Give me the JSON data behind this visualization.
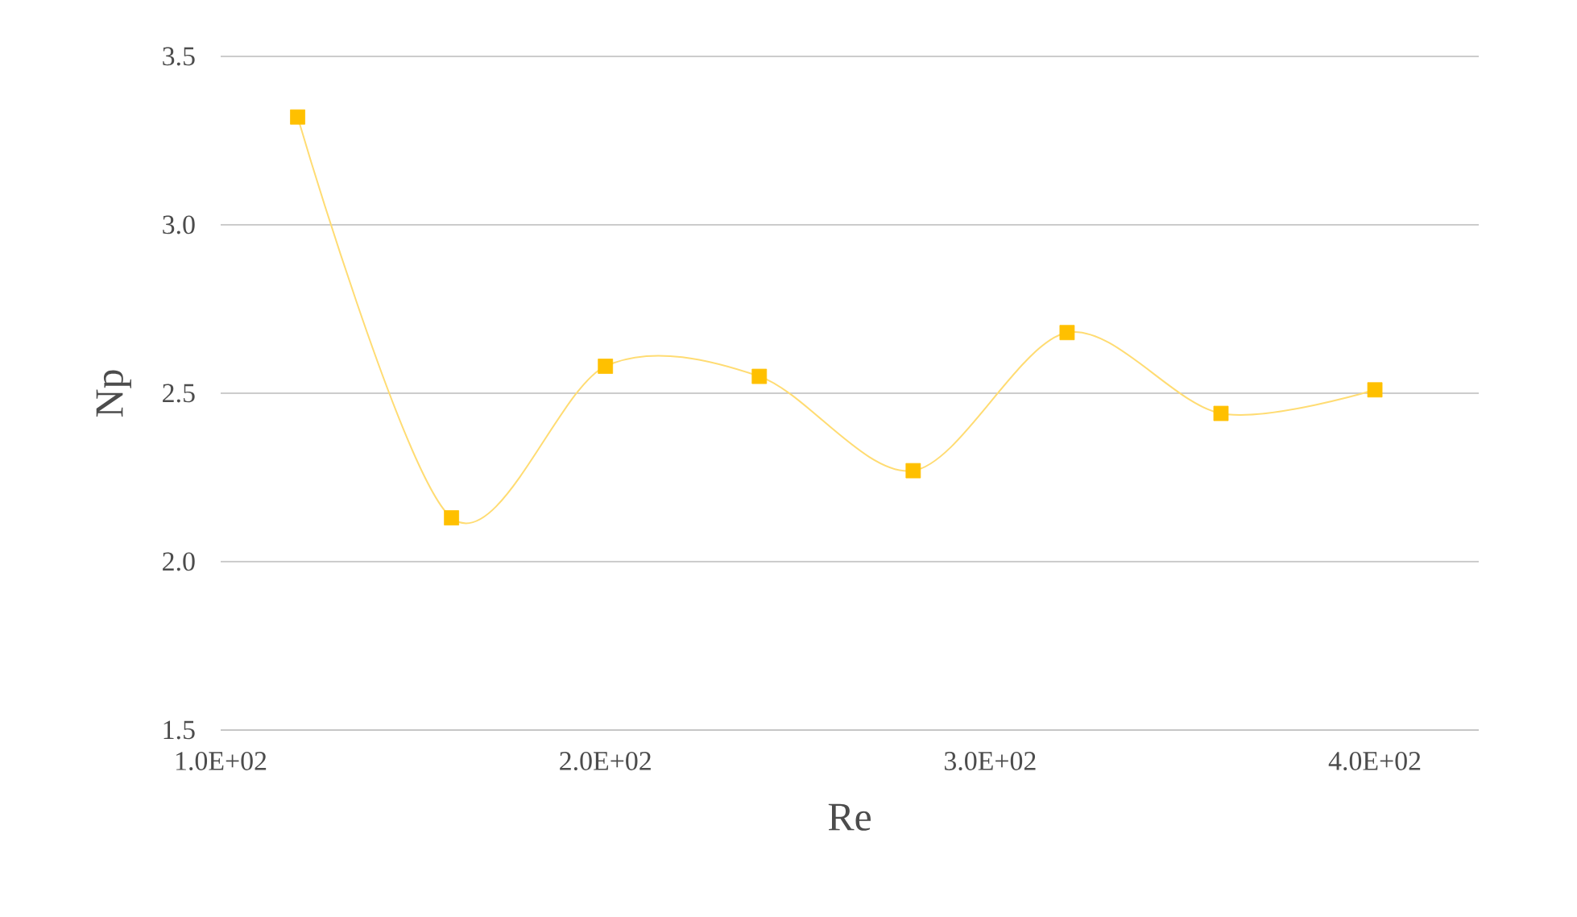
{
  "chart_data": {
    "type": "line",
    "xlabel": "Re",
    "ylabel": "Np",
    "x": [
      120,
      160,
      200,
      240,
      280,
      320,
      360,
      400
    ],
    "series": [
      {
        "color": "#ffc000",
        "values": [
          3.32,
          2.13,
          2.58,
          2.55,
          2.27,
          2.68,
          2.44,
          2.51
        ]
      }
    ],
    "xlim": [
      100,
      427
    ],
    "ylim": [
      1.5,
      3.5
    ],
    "xticks": [
      {
        "value": 100,
        "label": "1.0E+02"
      },
      {
        "value": 200,
        "label": "2.0E+02"
      },
      {
        "value": 300,
        "label": "3.0E+02"
      },
      {
        "value": 400,
        "label": "4.0E+02"
      }
    ],
    "yticks": [
      {
        "value": 1.5,
        "label": "1.5"
      },
      {
        "value": 2.0,
        "label": "2.0"
      },
      {
        "value": 2.5,
        "label": "2.5"
      },
      {
        "value": 3.0,
        "label": "3.0"
      },
      {
        "value": 3.5,
        "label": "3.5"
      }
    ],
    "grid": "y",
    "marker": "square"
  }
}
